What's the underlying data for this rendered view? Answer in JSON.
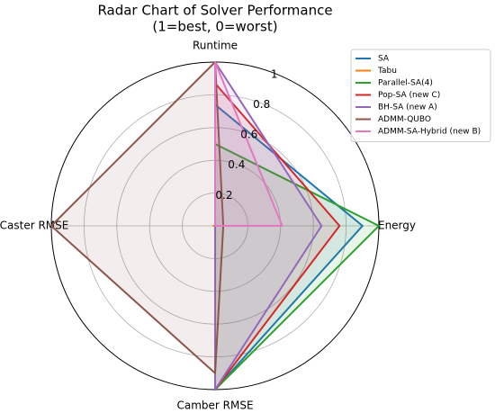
{
  "chart_data": {
    "type": "radar",
    "title": "Radar Chart of Solver Performance",
    "subtitle": "(1=best, 0=worst)",
    "categories": [
      "Runtime",
      "Energy",
      "Camber RMSE",
      "Caster RMSE"
    ],
    "rlim": [
      0,
      1
    ],
    "rticks": [
      0.2,
      0.4,
      0.6,
      0.8,
      1.0
    ],
    "grid": true,
    "legend": "upper right",
    "series": [
      {
        "name": "SA",
        "color": "#1f77b4",
        "values": [
          0.74,
          0.9,
          1.0,
          0.0
        ]
      },
      {
        "name": "Tabu",
        "color": "#ff7f0e",
        "values": [
          0.0,
          0.0,
          0.0,
          0.01
        ]
      },
      {
        "name": "Parallel-SA(4)",
        "color": "#2ca02c",
        "values": [
          0.5,
          1.0,
          1.0,
          0.0
        ]
      },
      {
        "name": "Pop-SA (new C)",
        "color": "#d62728",
        "values": [
          0.87,
          0.76,
          1.0,
          0.0
        ]
      },
      {
        "name": "BH-SA (new A)",
        "color": "#9467bd",
        "values": [
          1.0,
          0.65,
          1.0,
          0.0
        ]
      },
      {
        "name": "ADMM-QUBO",
        "color": "#8c564b",
        "values": [
          1.0,
          0.05,
          0.9,
          1.0
        ]
      },
      {
        "name": "ADMM-SA-Hybrid (new B)",
        "color": "#e377c2",
        "values": [
          1.0,
          0.41,
          0.0,
          0.0
        ]
      }
    ]
  }
}
